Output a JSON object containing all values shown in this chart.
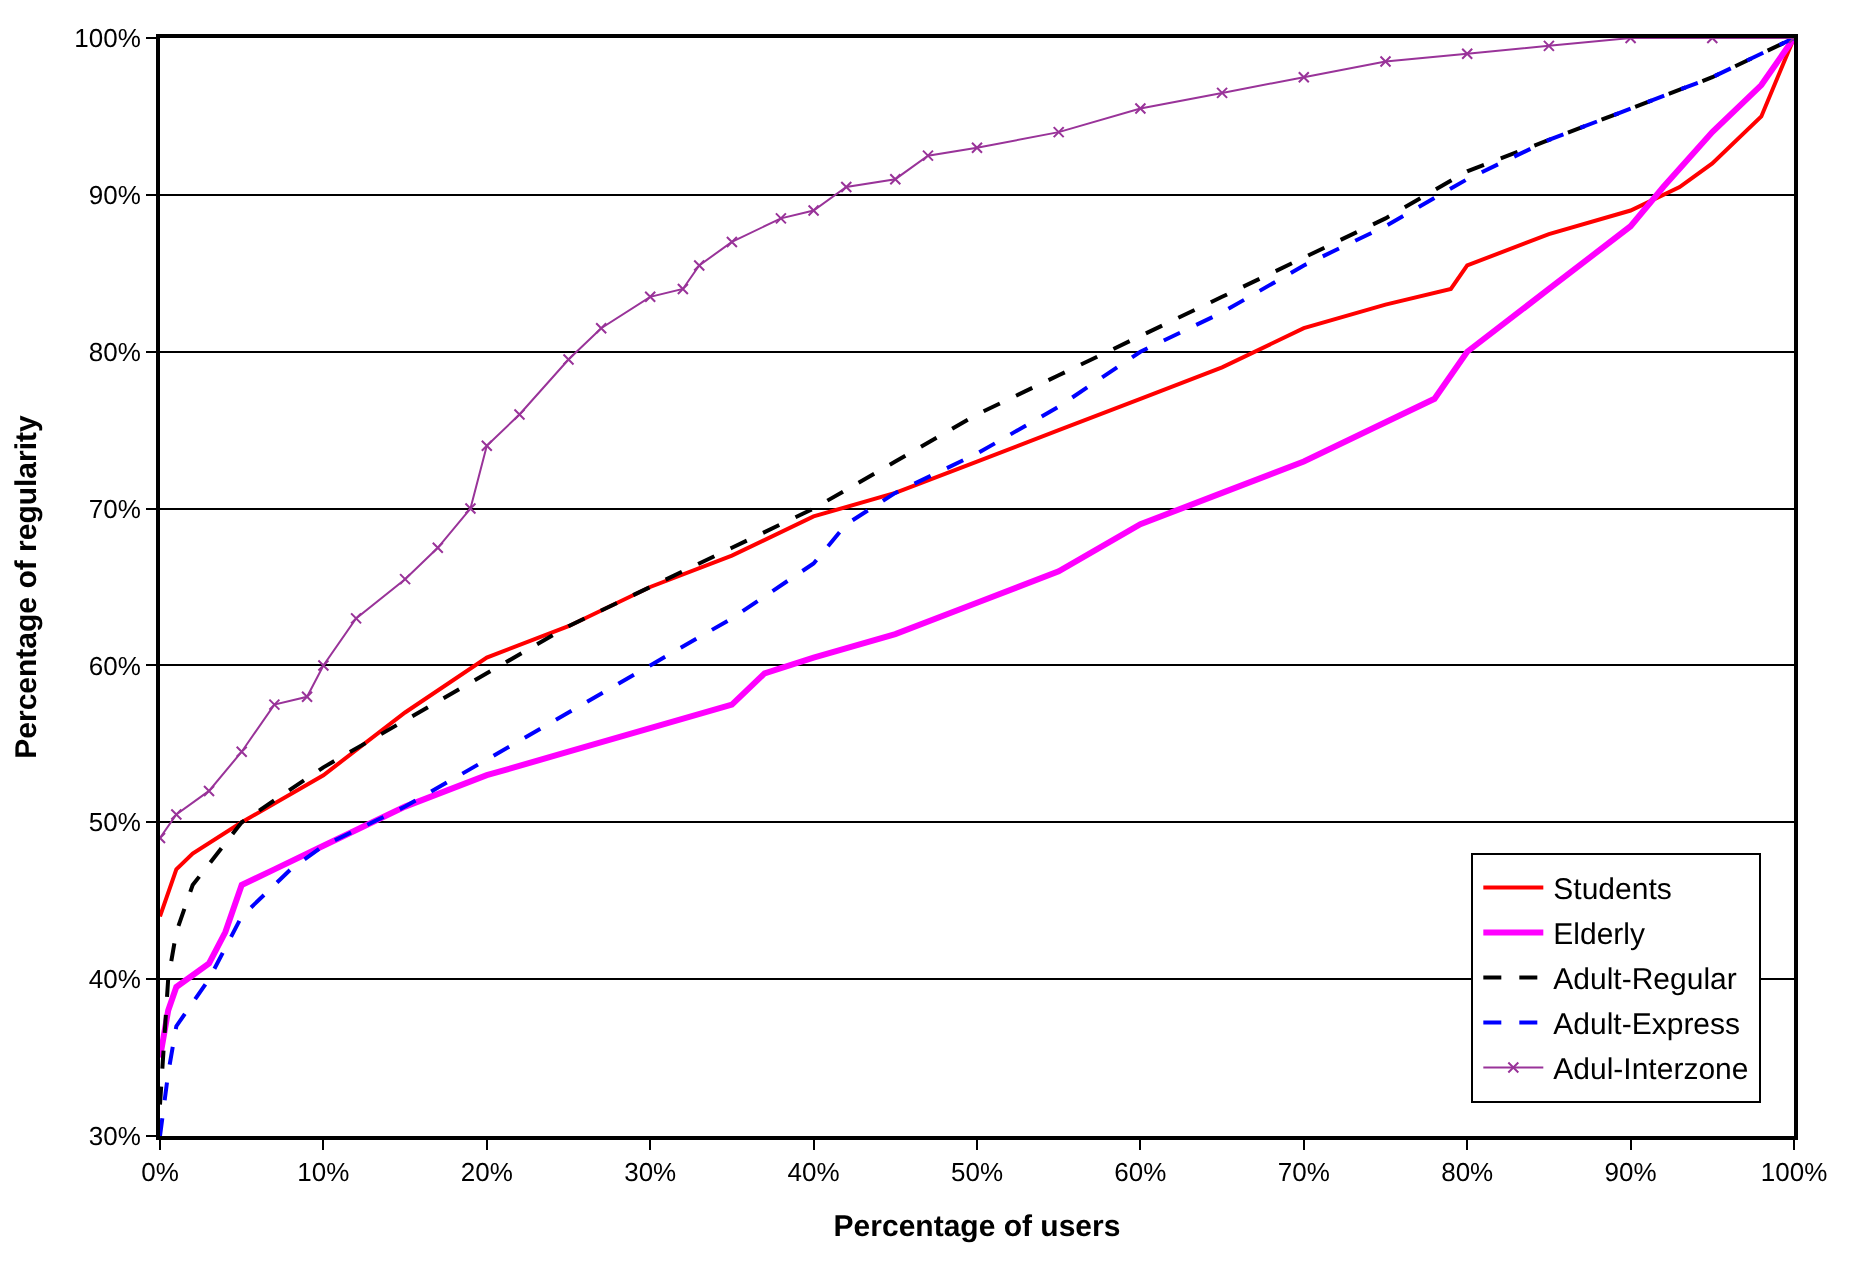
{
  "chart_data": {
    "type": "line",
    "xlabel": "Percentage of users",
    "ylabel": "Percentage of regularity",
    "xlim": [
      0,
      100
    ],
    "xticks": [
      {
        "value": 0,
        "label": "0%"
      },
      {
        "value": 10,
        "label": "10%"
      },
      {
        "value": 20,
        "label": "20%"
      },
      {
        "value": 30,
        "label": "30%"
      },
      {
        "value": 40,
        "label": "40%"
      },
      {
        "value": 50,
        "label": "50%"
      },
      {
        "value": 60,
        "label": "60%"
      },
      {
        "value": 70,
        "label": "70%"
      },
      {
        "value": 80,
        "label": "80%"
      },
      {
        "value": 90,
        "label": "90%"
      },
      {
        "value": 100,
        "label": "100%"
      }
    ],
    "ylim": [
      30,
      100
    ],
    "yticks": [
      {
        "value": 30,
        "label": "30%"
      },
      {
        "value": 40,
        "label": "40%"
      },
      {
        "value": 50,
        "label": "50%"
      },
      {
        "value": 60,
        "label": "60%"
      },
      {
        "value": 70,
        "label": "70%"
      },
      {
        "value": 80,
        "label": "80%"
      },
      {
        "value": 90,
        "label": "90%"
      },
      {
        "value": 100,
        "label": "100%"
      }
    ],
    "grid": "y",
    "legend": "bottom right",
    "series": [
      {
        "name": "Students",
        "color": "#ff0000",
        "line_style": "solid",
        "x": [
          0,
          1,
          2,
          5,
          10,
          15,
          20,
          25,
          30,
          35,
          40,
          45,
          50,
          55,
          60,
          65,
          70,
          75,
          79,
          80,
          85,
          90,
          93,
          95,
          98,
          100
        ],
        "values": [
          44,
          47,
          48,
          50,
          53,
          57,
          60.5,
          62.5,
          65,
          67,
          69.5,
          71,
          73,
          75,
          77,
          79,
          81.5,
          83,
          84,
          85.5,
          87.5,
          89,
          90.5,
          92,
          95,
          100
        ]
      },
      {
        "name": "Elderly",
        "color": "#ff00ff",
        "line_style": "solid",
        "x": [
          0,
          0.5,
          1,
          3,
          4,
          5,
          7,
          10,
          15,
          20,
          25,
          30,
          35,
          37,
          40,
          45,
          50,
          55,
          60,
          65,
          70,
          75,
          78,
          80,
          85,
          90,
          92,
          95,
          98,
          100
        ],
        "values": [
          35,
          38,
          39.5,
          41,
          43,
          46,
          47,
          48.5,
          51,
          53,
          54.5,
          56,
          57.5,
          59.5,
          60.5,
          62,
          64,
          66,
          69,
          71,
          73,
          75.5,
          77,
          80,
          84,
          88,
          90.5,
          94,
          97,
          100
        ]
      },
      {
        "name": "Adult-Regular",
        "color": "#000000",
        "line_style": "dashed",
        "x": [
          0,
          0.5,
          1,
          2,
          5,
          10,
          15,
          20,
          25,
          30,
          35,
          40,
          45,
          50,
          55,
          60,
          65,
          70,
          75,
          80,
          85,
          90,
          95,
          100
        ],
        "values": [
          32,
          40,
          43,
          46,
          50,
          53.5,
          56.5,
          59.5,
          62.5,
          65,
          67.5,
          70,
          73,
          76,
          78.5,
          81,
          83.5,
          86,
          88.5,
          91.5,
          93.5,
          95.5,
          97.5,
          100
        ]
      },
      {
        "name": "Adult-Express",
        "color": "#0000ff",
        "line_style": "dashed",
        "x": [
          0,
          0.5,
          1,
          3,
          5,
          8,
          10,
          15,
          20,
          25,
          30,
          35,
          40,
          42,
          45,
          50,
          55,
          60,
          65,
          70,
          75,
          80,
          85,
          90,
          95,
          100
        ],
        "values": [
          30,
          34,
          37,
          40,
          44,
          47,
          48.5,
          51,
          54,
          57,
          60,
          63,
          66.5,
          69,
          71,
          73.5,
          76.5,
          80,
          82.5,
          85.5,
          88,
          91,
          93.5,
          95.5,
          97.5,
          100
        ]
      },
      {
        "name": "Adul-Interzone",
        "color": "#993399",
        "line_style": "solid",
        "marker": "cross",
        "x": [
          0,
          1,
          3,
          5,
          7,
          9,
          10,
          12,
          15,
          17,
          19,
          20,
          22,
          25,
          27,
          30,
          32,
          33,
          35,
          38,
          40,
          42,
          45,
          47,
          50,
          55,
          60,
          65,
          70,
          75,
          80,
          85,
          90,
          95,
          100
        ],
        "values": [
          49,
          50.5,
          52,
          54.5,
          57.5,
          58,
          60,
          63,
          65.5,
          67.5,
          70,
          74,
          76,
          79.5,
          81.5,
          83.5,
          84,
          85.5,
          87,
          88.5,
          89,
          90.5,
          91,
          92.5,
          93,
          94,
          95.5,
          96.5,
          97.5,
          98.5,
          99,
          99.5,
          100,
          100,
          100
        ]
      }
    ]
  }
}
